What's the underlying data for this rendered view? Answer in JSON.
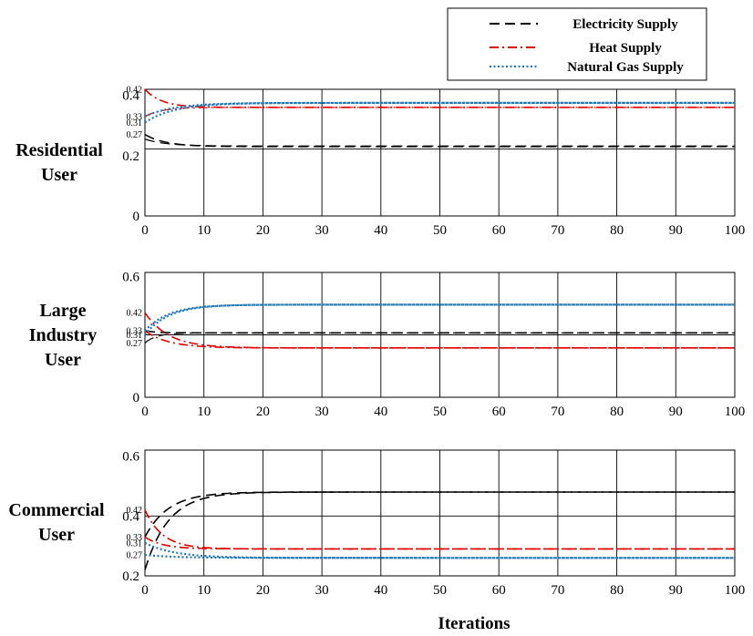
{
  "figure": {
    "xlabel": "Iterations",
    "legend": [
      {
        "label": "Electricity Supply",
        "color": "#000000",
        "style": "dashed"
      },
      {
        "label": "Heat Supply",
        "color": "#e00000",
        "style": "dashdot"
      },
      {
        "label": "Natural Gas Supply",
        "color": "#1f77b4",
        "style": "dotted"
      }
    ]
  },
  "chart_data": [
    {
      "type": "line",
      "row_label": [
        "Residential",
        "User"
      ],
      "xlim": [
        0,
        100
      ],
      "ylim": [
        0,
        0.42
      ],
      "xticks": [
        0,
        10,
        20,
        30,
        40,
        50,
        60,
        70,
        80,
        90,
        100
      ],
      "yticks_major": [
        {
          "v": 0,
          "t": "0"
        },
        {
          "v": 0.2,
          "t": "0.2"
        },
        {
          "v": 0.4,
          "t": "0.4"
        }
      ],
      "yticks_minor": [
        {
          "v": 0.42,
          "t": "0.42"
        },
        {
          "v": 0.33,
          "t": "0.33"
        },
        {
          "v": 0.31,
          "t": "0.31"
        },
        {
          "v": 0.27,
          "t": "0.27"
        }
      ],
      "hline": 0.222,
      "series": [
        {
          "name": "Electricity Supply",
          "color": "#000000",
          "style": "dashed",
          "width": 1.6,
          "start": 0.27,
          "final": 0.23,
          "tau": 3.5
        },
        {
          "name": "Electricity Supply",
          "color": "#000000",
          "style": "dashed",
          "width": 1.2,
          "start": 0.255,
          "final": 0.232,
          "tau": 3.5
        },
        {
          "name": "Heat Supply",
          "color": "#e00000",
          "style": "dashdot",
          "width": 1.6,
          "start": 0.42,
          "final": 0.36,
          "tau": 2.8
        },
        {
          "name": "Heat Supply",
          "color": "#e00000",
          "style": "dashdot",
          "width": 1.2,
          "start": 0.33,
          "final": 0.36,
          "tau": 2.8
        },
        {
          "name": "Natural Gas Supply",
          "color": "#1f77b4",
          "style": "dotted",
          "width": 2.2,
          "start": 0.33,
          "final": 0.375,
          "tau": 5
        },
        {
          "name": "Natural Gas Supply",
          "color": "#1f77b4",
          "style": "dotted",
          "width": 2.2,
          "start": 0.31,
          "final": 0.375,
          "tau": 5
        }
      ]
    },
    {
      "type": "line",
      "row_label": [
        "Large",
        "Industry",
        "User"
      ],
      "xlim": [
        0,
        100
      ],
      "ylim": [
        0,
        0.62
      ],
      "xticks": [
        0,
        10,
        20,
        30,
        40,
        50,
        60,
        70,
        80,
        90,
        100
      ],
      "yticks_major": [
        {
          "v": 0,
          "t": "0"
        },
        {
          "v": 0.6,
          "t": "0.6"
        }
      ],
      "yticks_minor": [
        {
          "v": 0.42,
          "t": "0.42"
        },
        {
          "v": 0.33,
          "t": "0.33"
        },
        {
          "v": 0.31,
          "t": "0.31"
        },
        {
          "v": 0.27,
          "t": "0.27"
        }
      ],
      "hline": 0.31,
      "series": [
        {
          "name": "Electricity Supply",
          "color": "#000000",
          "style": "dashed",
          "width": 1.6,
          "start": 0.33,
          "final": 0.32,
          "tau": 2
        },
        {
          "name": "Electricity Supply",
          "color": "#000000",
          "style": "dashed",
          "width": 1.2,
          "start": 0.27,
          "final": 0.32,
          "tau": 2
        },
        {
          "name": "Heat Supply",
          "color": "#e00000",
          "style": "dashdot",
          "width": 1.6,
          "start": 0.42,
          "final": 0.245,
          "tau": 4
        },
        {
          "name": "Heat Supply",
          "color": "#e00000",
          "style": "dashdot",
          "width": 1.6,
          "start": 0.33,
          "final": 0.245,
          "tau": 4
        },
        {
          "name": "Natural Gas Supply",
          "color": "#1f77b4",
          "style": "dotted",
          "width": 2.2,
          "start": 0.33,
          "final": 0.46,
          "tau": 4
        },
        {
          "name": "Natural Gas Supply",
          "color": "#1f77b4",
          "style": "dotted",
          "width": 2.2,
          "start": 0.31,
          "final": 0.46,
          "tau": 4
        }
      ]
    },
    {
      "type": "line",
      "row_label": [
        "Commercial",
        "User"
      ],
      "xlim": [
        0,
        100
      ],
      "ylim": [
        0.2,
        0.62
      ],
      "xticks": [
        0,
        10,
        20,
        30,
        40,
        50,
        60,
        70,
        80,
        90,
        100
      ],
      "yticks_major": [
        {
          "v": 0.2,
          "t": "0.2"
        },
        {
          "v": 0.4,
          "t": "0.4"
        },
        {
          "v": 0.6,
          "t": "0.6"
        }
      ],
      "yticks_minor": [
        {
          "v": 0.42,
          "t": "0.42"
        },
        {
          "v": 0.33,
          "t": "0.33"
        },
        {
          "v": 0.31,
          "t": "0.31"
        },
        {
          "v": 0.27,
          "t": "0.27"
        }
      ],
      "hline": 0.4,
      "series": [
        {
          "name": "Electricity Supply",
          "color": "#000000",
          "style": "dashed",
          "width": 1.6,
          "start": 0.33,
          "final": 0.48,
          "tau": 4
        },
        {
          "name": "Electricity Supply",
          "color": "#000000",
          "style": "dashed",
          "width": 1.6,
          "start": 0.22,
          "final": 0.48,
          "tau": 4
        },
        {
          "name": "Heat Supply",
          "color": "#e00000",
          "style": "dashdot",
          "width": 1.6,
          "start": 0.42,
          "final": 0.29,
          "tau": 3
        },
        {
          "name": "Heat Supply",
          "color": "#e00000",
          "style": "dashdot",
          "width": 1.6,
          "start": 0.33,
          "final": 0.29,
          "tau": 3
        },
        {
          "name": "Natural Gas Supply",
          "color": "#1f77b4",
          "style": "dotted",
          "width": 2.2,
          "start": 0.31,
          "final": 0.26,
          "tau": 5
        },
        {
          "name": "Natural Gas Supply",
          "color": "#1f77b4",
          "style": "dotted",
          "width": 2.2,
          "start": 0.27,
          "final": 0.26,
          "tau": 5
        }
      ]
    }
  ]
}
